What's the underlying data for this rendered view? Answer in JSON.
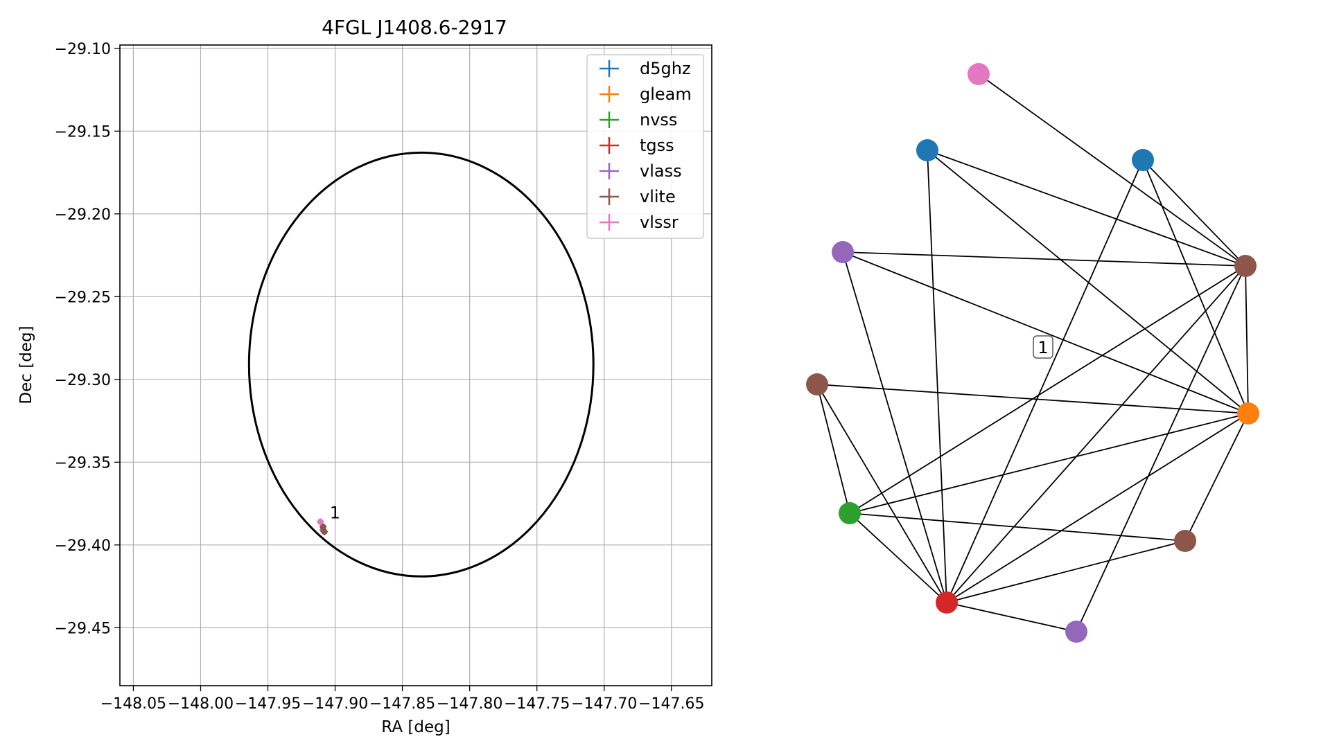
{
  "chart_data": [
    {
      "type": "scatter",
      "title": "4FGL J1408.6-2917",
      "xlabel": "RA [deg]",
      "ylabel": "Dec [deg]",
      "xlim": [
        -148.06,
        -147.62
      ],
      "ylim": [
        -29.485,
        -29.098
      ],
      "xticks": [
        -148.05,
        -148.0,
        -147.95,
        -147.9,
        -147.85,
        -147.8,
        -147.75,
        -147.7,
        -147.65
      ],
      "xtick_labels": [
        "−148.05",
        "−148.00",
        "−147.95",
        "−147.90",
        "−147.85",
        "−147.80",
        "−147.75",
        "−147.70",
        "−147.65"
      ],
      "yticks": [
        -29.1,
        -29.15,
        -29.2,
        -29.25,
        -29.3,
        -29.35,
        -29.4,
        -29.45
      ],
      "ytick_labels": [
        "−29.10",
        "−29.15",
        "−29.20",
        "−29.25",
        "−29.30",
        "−29.35",
        "−29.40",
        "−29.45"
      ],
      "grid": true,
      "legend_position": "top-right",
      "ellipse": {
        "center": [
          -147.836,
          -29.291
        ],
        "ra_radius": 0.128,
        "dec_radius": 0.128,
        "color": "#000000"
      },
      "series": [
        {
          "name": "d5ghz",
          "color": "#1f77b4",
          "points": []
        },
        {
          "name": "gleam",
          "color": "#ff7f0e",
          "points": []
        },
        {
          "name": "nvss",
          "color": "#2ca02c",
          "points": []
        },
        {
          "name": "tgss",
          "color": "#d62728",
          "points": []
        },
        {
          "name": "vlass",
          "color": "#9467bd",
          "points": [
            [
              -147.909,
              -29.391
            ]
          ]
        },
        {
          "name": "vlite",
          "color": "#8c564b",
          "points": [
            [
              -147.908,
              -29.392
            ],
            [
              -147.909,
              -29.389
            ]
          ]
        },
        {
          "name": "vlssr",
          "color": "#e377c2",
          "points": [
            [
              -147.911,
              -29.386
            ]
          ]
        }
      ],
      "annotations": [
        {
          "text": "1",
          "x": -147.904,
          "y": -29.384
        }
      ]
    },
    {
      "type": "network",
      "label_box": "1",
      "nodes": [
        {
          "id": "vlssr_1",
          "color": "#e377c2"
        },
        {
          "id": "d5ghz_1",
          "color": "#1f77b4"
        },
        {
          "id": "d5ghz_2",
          "color": "#1f77b4"
        },
        {
          "id": "vlass_1",
          "color": "#9467bd"
        },
        {
          "id": "vlite_1",
          "color": "#8c564b"
        },
        {
          "id": "vlite_2",
          "color": "#8c564b"
        },
        {
          "id": "gleam_1",
          "color": "#ff7f0e"
        },
        {
          "id": "nvss_1",
          "color": "#2ca02c"
        },
        {
          "id": "vlite_3",
          "color": "#8c564b"
        },
        {
          "id": "tgss_1",
          "color": "#d62728"
        },
        {
          "id": "vlass_2",
          "color": "#9467bd"
        }
      ],
      "edges": [
        [
          "vlssr_1",
          "vlite_1"
        ],
        [
          "d5ghz_1",
          "vlite_1"
        ],
        [
          "d5ghz_1",
          "gleam_1"
        ],
        [
          "d5ghz_1",
          "tgss_1"
        ],
        [
          "d5ghz_2",
          "vlite_1"
        ],
        [
          "d5ghz_2",
          "gleam_1"
        ],
        [
          "d5ghz_2",
          "tgss_1"
        ],
        [
          "vlass_1",
          "vlite_1"
        ],
        [
          "vlass_1",
          "gleam_1"
        ],
        [
          "vlass_1",
          "tgss_1"
        ],
        [
          "vlite_2",
          "gleam_1"
        ],
        [
          "vlite_2",
          "nvss_1"
        ],
        [
          "vlite_2",
          "tgss_1"
        ],
        [
          "vlite_1",
          "gleam_1"
        ],
        [
          "vlite_1",
          "nvss_1"
        ],
        [
          "vlite_1",
          "tgss_1"
        ],
        [
          "vlite_1",
          "vlass_2"
        ],
        [
          "gleam_1",
          "nvss_1"
        ],
        [
          "gleam_1",
          "vlite_3"
        ],
        [
          "gleam_1",
          "tgss_1"
        ],
        [
          "nvss_1",
          "vlite_3"
        ],
        [
          "nvss_1",
          "tgss_1"
        ],
        [
          "vlite_3",
          "tgss_1"
        ],
        [
          "tgss_1",
          "vlass_2"
        ]
      ]
    }
  ]
}
